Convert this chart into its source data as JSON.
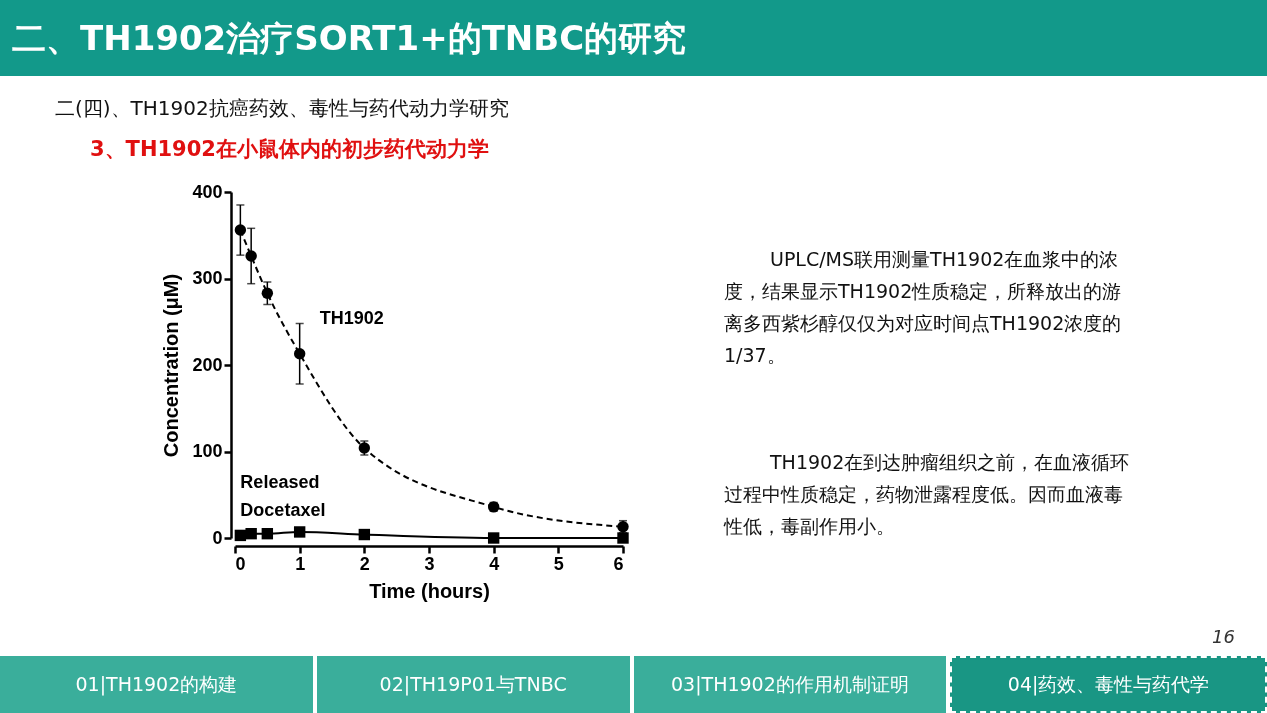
{
  "chart_data": {
    "type": "line",
    "title": "二、TH1902治疗SORT1+的TNBC的研究",
    "subtitle": "二(四)、TH1902抗癌药效、毒性与药代动力学研究",
    "xlabel": "Time (hours)",
    "ylabel": "Concentration (μM)",
    "xlim": [
      0,
      6
    ],
    "xticks": [
      0,
      1,
      2,
      3,
      4,
      5,
      6
    ],
    "ylim": [
      0,
      400
    ],
    "yticks": [
      0,
      100,
      200,
      300,
      400
    ],
    "series": [
      {
        "name": "TH1902",
        "color": "#000000",
        "marker": "circle",
        "line_style": "dashed",
        "x": [
          0.083,
          0.25,
          0.5,
          1,
          2,
          4,
          6
        ],
        "values": [
          356,
          326,
          283,
          213,
          104,
          36,
          13
        ],
        "errors": [
          29,
          32,
          13,
          35,
          8,
          5,
          7
        ]
      },
      {
        "name": "Released Docetaxel",
        "color": "#000000",
        "marker": "square",
        "line_style": "solid",
        "x": [
          0.083,
          0.25,
          0.5,
          1,
          2,
          4,
          6
        ],
        "values": [
          3,
          5,
          5,
          7,
          4,
          0,
          0
        ]
      }
    ],
    "annotations": [
      "3、TH1902在小鼠体内的初步药代动力学",
      "UPLC/MS联用测量TH1902在血浆中的浓度，结果显示TH1902性质稳定，所释放出的游离多西紫杉醇仅仅为对应时间点TH1902浓度的1/37。",
      "TH1902在到达肿瘤组织之前，在血液循环过程中性质稳定，药物泄露程度低。因而血液毒性低，毒副作用小。",
      "01|TH1902的构建",
      "02|TH19P01与TNBC",
      "03|TH1902的作用机制证明",
      "04|药效、毒性与药代学",
      "16"
    ]
  }
}
